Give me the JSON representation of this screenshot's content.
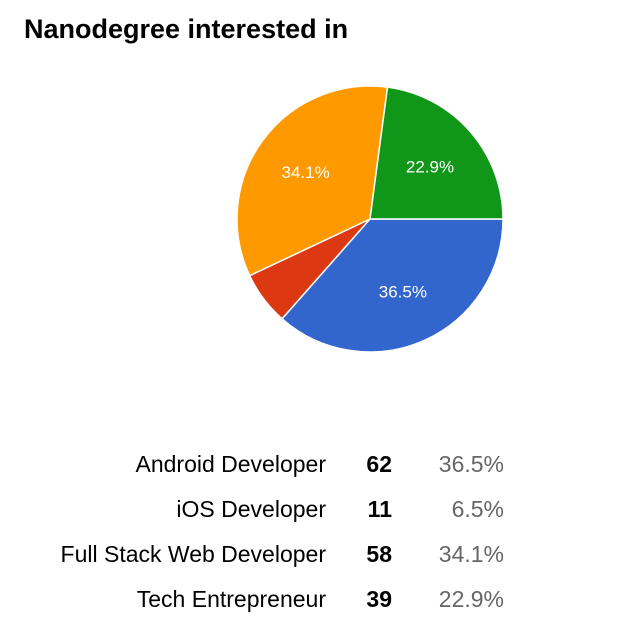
{
  "chart_data": {
    "type": "pie",
    "title": "Nanodegree interested in",
    "start_angle_deg": 0,
    "slices": [
      {
        "label": "Android Developer",
        "count": 62,
        "percent": "36.5%",
        "value": 36.5,
        "color": "#3366cc",
        "show_label": true
      },
      {
        "label": "iOS Developer",
        "count": 11,
        "percent": "6.5%",
        "value": 6.5,
        "color": "#dc3912",
        "show_label": false
      },
      {
        "label": "Full Stack Web Developer",
        "count": 58,
        "percent": "34.1%",
        "value": 34.1,
        "color": "#ff9900",
        "show_label": true
      },
      {
        "label": "Tech Entrepreneur",
        "count": 39,
        "percent": "22.9%",
        "value": 22.9,
        "color": "#109618",
        "show_label": true
      }
    ]
  }
}
